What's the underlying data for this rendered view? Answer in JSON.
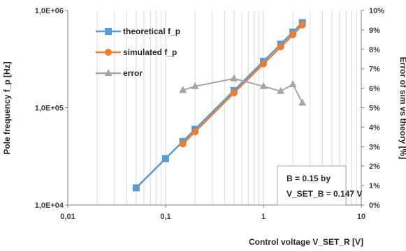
{
  "chart_data": {
    "type": "line",
    "xlabel": "Control voltage V_SET_R [V]",
    "ylabel": "Pole frequency f_p [Hz]",
    "y2label": "Error of sim vs theory [%]",
    "xscale": "log",
    "yscale": "log",
    "xlim": [
      0.01,
      10
    ],
    "ylim": [
      10000,
      1000000
    ],
    "y2lim": [
      0,
      10
    ],
    "x_tick_labels": [
      "0,01",
      "0,1",
      "1",
      "10"
    ],
    "y_tick_labels": [
      "1,0E+04",
      "1,0E+05",
      "1,0E+06"
    ],
    "y2_tick_labels": [
      "0%",
      "1%",
      "2%",
      "3%",
      "4%",
      "5%",
      "6%",
      "7%",
      "8%",
      "9%",
      "10%"
    ],
    "grid": {
      "vertical": true,
      "horizontal": false
    },
    "legend_position": "top-left",
    "series": [
      {
        "name": "theoretical f_p",
        "axis": "left",
        "color": "#5b9bd5",
        "marker": "square",
        "x": [
          0.05,
          0.1,
          0.15,
          0.2,
          0.5,
          1.0,
          1.5,
          2.0,
          2.5
        ],
        "y": [
          15000,
          30000,
          45000,
          60000,
          150000,
          300000,
          450000,
          600000,
          750000
        ]
      },
      {
        "name": "simulated f_p",
        "axis": "left",
        "color": "#ed7d31",
        "marker": "circle",
        "x": [
          0.15,
          0.2,
          0.5,
          1.0,
          1.5,
          2.0,
          2.5
        ],
        "y": [
          42500,
          56500,
          142000,
          282000,
          422000,
          563000,
          710000
        ]
      },
      {
        "name": "error",
        "axis": "right",
        "color": "#a5a5a5",
        "marker": "triangle",
        "x": [
          0.15,
          0.2,
          0.5,
          1.0,
          1.5,
          2.0,
          2.5
        ],
        "y": [
          5.9,
          6.1,
          6.5,
          6.1,
          5.85,
          6.2,
          5.25
        ]
      }
    ],
    "annotation": {
      "lines": [
        "B = 0.15 by",
        "V_SET_B = 0.147 V"
      ]
    }
  }
}
